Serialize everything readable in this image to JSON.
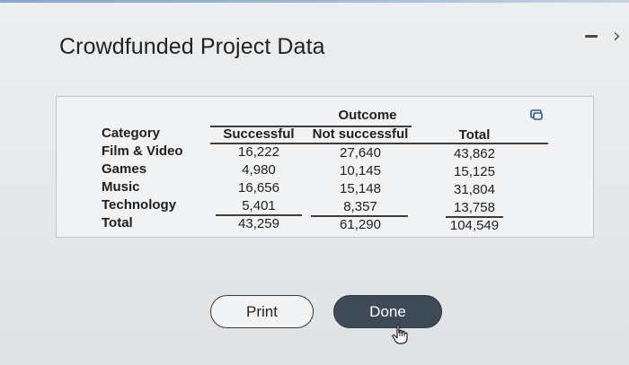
{
  "page": {
    "title": "Crowdfunded Project Data"
  },
  "icons": {
    "minimize": "minimize-icon",
    "chevron": "chevron-right-icon",
    "copy": "copy-icon",
    "cursor": "hand-pointer-cursor-icon"
  },
  "table": {
    "group_header": "Outcome",
    "headers": {
      "category": "Category",
      "successful": "Successful",
      "not_successful": "Not successful",
      "total": "Total"
    },
    "rows": [
      {
        "category": "Film & Video",
        "successful": "16,222",
        "not_successful": "27,640",
        "total": "43,862"
      },
      {
        "category": "Games",
        "successful": "4,980",
        "not_successful": "10,145",
        "total": "15,125"
      },
      {
        "category": "Music",
        "successful": "16,656",
        "not_successful": "15,148",
        "total": "31,804"
      },
      {
        "category": "Technology",
        "successful": "5,401",
        "not_successful": "8,357",
        "total": "13,758"
      },
      {
        "category": "Total",
        "successful": "43,259",
        "not_successful": "61,290",
        "total": "104,549"
      }
    ]
  },
  "buttons": {
    "print_label": "Print",
    "done_label": "Done"
  },
  "colors": {
    "background": "#e6e8ea",
    "panel": "#f1f2f3",
    "done_button": "#3e4a56",
    "print_button": "#f2f3f4"
  }
}
